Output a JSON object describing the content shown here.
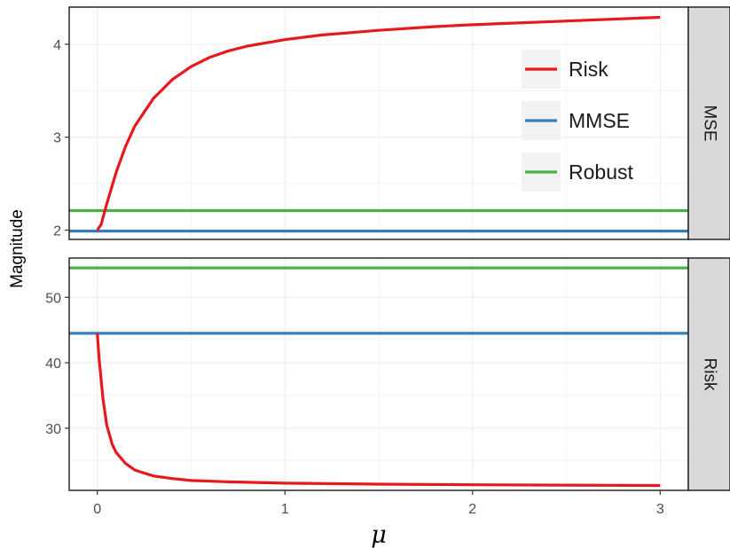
{
  "chart_data": {
    "type": "line",
    "xlabel": "μ",
    "ylabel": "Magnitude",
    "xlim": [
      -0.15,
      3.15
    ],
    "x_ticks": [
      0,
      1,
      2,
      3
    ],
    "grid": true,
    "legend": {
      "placement": "top-right",
      "entries": [
        {
          "name": "Risk",
          "color": "#e41a1c"
        },
        {
          "name": "MMSE",
          "color": "#377eb8"
        },
        {
          "name": "Robust",
          "color": "#4daf4a"
        }
      ]
    },
    "panels": [
      {
        "strip_label": "MSE",
        "ylim": [
          1.9,
          4.4
        ],
        "y_ticks": [
          2,
          3,
          4
        ],
        "series": [
          {
            "name": "Risk",
            "color": "#e41a1c",
            "x": [
              0,
              0.02,
              0.05,
              0.1,
              0.15,
              0.2,
              0.3,
              0.4,
              0.5,
              0.6,
              0.7,
              0.8,
              1.0,
              1.2,
              1.5,
              1.8,
              2.0,
              2.5,
              3.0
            ],
            "y": [
              2.0,
              2.06,
              2.28,
              2.62,
              2.9,
              3.12,
              3.42,
              3.62,
              3.76,
              3.86,
              3.93,
              3.98,
              4.05,
              4.1,
              4.15,
              4.19,
              4.21,
              4.25,
              4.29
            ]
          },
          {
            "name": "MMSE",
            "color": "#377eb8",
            "x": [
              -0.15,
              3.15
            ],
            "y": [
              1.99,
              1.99
            ]
          },
          {
            "name": "Robust",
            "color": "#4daf4a",
            "x": [
              -0.15,
              3.15
            ],
            "y": [
              2.21,
              2.21
            ]
          }
        ]
      },
      {
        "strip_label": "Risk",
        "ylim": [
          20.5,
          56
        ],
        "y_ticks": [
          30,
          40,
          50
        ],
        "series": [
          {
            "name": "Risk",
            "color": "#e41a1c",
            "x": [
              0,
              0.01,
              0.03,
              0.05,
              0.08,
              0.1,
              0.15,
              0.2,
              0.3,
              0.4,
              0.5,
              0.7,
              1.0,
              1.5,
              2.0,
              2.5,
              3.0
            ],
            "y": [
              44.5,
              40.5,
              34.5,
              30.5,
              27.5,
              26.3,
              24.6,
              23.6,
              22.7,
              22.3,
              22.0,
              21.8,
              21.6,
              21.45,
              21.35,
              21.3,
              21.25
            ]
          },
          {
            "name": "MMSE",
            "color": "#377eb8",
            "x": [
              -0.15,
              3.15
            ],
            "y": [
              44.5,
              44.5
            ]
          },
          {
            "name": "Robust",
            "color": "#4daf4a",
            "x": [
              -0.15,
              3.15
            ],
            "y": [
              54.5,
              54.5
            ]
          }
        ]
      }
    ]
  }
}
